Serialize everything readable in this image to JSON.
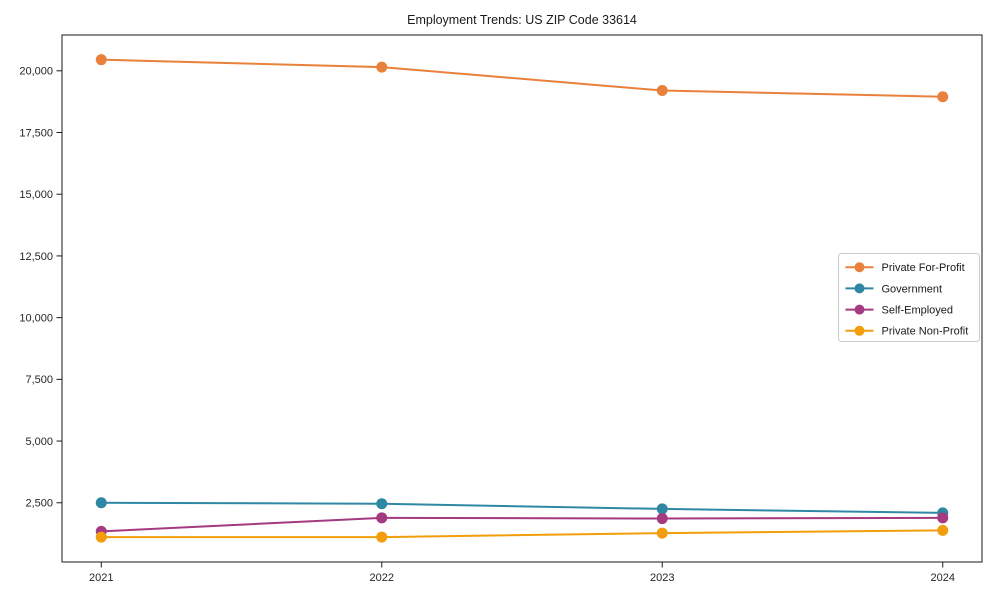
{
  "figure": {
    "background": "#ffffff",
    "frame_color": "#1a1a1a"
  },
  "chart_data": {
    "type": "line",
    "title": "Employment Trends: US ZIP Code 33614",
    "xlabel": "",
    "ylabel": "",
    "grid": false,
    "categories": [
      "2021",
      "2022",
      "2023",
      "2024"
    ],
    "x": [
      2021,
      2022,
      2023,
      2024
    ],
    "series": [
      {
        "name": "Private For-Profit",
        "color": "#E8813C",
        "values": [
          20450,
          20150,
          19200,
          18950
        ]
      },
      {
        "name": "Government",
        "color": "#2F88A3",
        "values": [
          2500,
          2460,
          2250,
          2090
        ]
      },
      {
        "name": "Self-Employed",
        "color": "#A43A80",
        "values": [
          1340,
          1890,
          1860,
          1890
        ]
      },
      {
        "name": "Private Non-Profit",
        "color": "#F29D0B",
        "values": [
          1110,
          1110,
          1270,
          1380
        ]
      }
    ],
    "yticks": [
      2500,
      5000,
      7500,
      10000,
      12500,
      15000,
      17500,
      20000
    ],
    "ytick_labels": [
      "2,500",
      "5,000",
      "7,500",
      "10,000",
      "12,500",
      "15,000",
      "17,500",
      "20,000"
    ],
    "ylim": [
      100,
      21450
    ],
    "xlim": [
      2020.86,
      2024.14
    ],
    "legend": {
      "position": "middle-right",
      "entries": [
        "Private For-Profit",
        "Government",
        "Self-Employed",
        "Private Non-Profit"
      ]
    }
  }
}
